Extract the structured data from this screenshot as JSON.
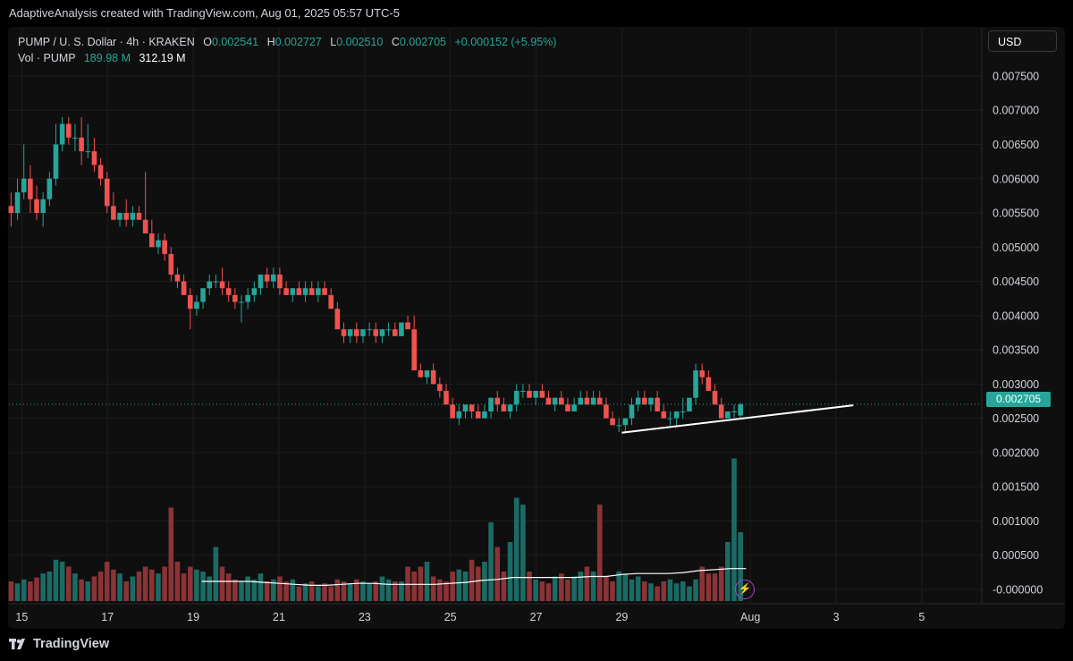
{
  "attribution": "AdaptiveAnalysis created with TradingView.com, Aug 01, 2025 05:57 UTC-5",
  "legend": {
    "symbol": "PUMP / U. S. Dollar · 4h · KRAKEN",
    "o_label": "O",
    "o": "0.002541",
    "h_label": "H",
    "h": "0.002727",
    "l_label": "L",
    "l": "0.002510",
    "c_label": "C",
    "c": "0.002705",
    "change": "+0.000152 (+5.95%)",
    "vol_label": "Vol · PUMP",
    "vol_ma": "189.98 M",
    "vol": "312.19 M"
  },
  "currency": "USD",
  "last_price_label": "0.002705",
  "footer_brand": "TradingView",
  "colors": {
    "up": "#26a69a",
    "down": "#ef5350",
    "up_vol": "#1b6b64",
    "down_vol": "#8b3336",
    "grid": "#1e1e1e",
    "text": "#d1d4dc"
  },
  "chart_data": {
    "type": "candlestick",
    "title": "PUMP / U. S. Dollar · 4h · KRAKEN",
    "price_axis": {
      "ticks": [
        "0.007500",
        "0.007000",
        "0.006500",
        "0.006000",
        "0.005500",
        "0.005000",
        "0.004500",
        "0.004000",
        "0.003500",
        "0.003000",
        "0.002500",
        "0.002000",
        "0.001500",
        "0.001000",
        "0.000500",
        "-0.000000"
      ],
      "tick_values": [
        0.0075,
        0.007,
        0.0065,
        0.006,
        0.0055,
        0.005,
        0.0045,
        0.004,
        0.0035,
        0.003,
        0.0025,
        0.002,
        0.0015,
        0.001,
        0.0005,
        0
      ],
      "range": [
        -0.00017,
        0.0078
      ]
    },
    "time_axis": {
      "ticks": [
        "15",
        "17",
        "19",
        "21",
        "23",
        "25",
        "27",
        "29",
        "Aug",
        "3",
        "5"
      ],
      "tick_days": [
        15,
        17,
        19,
        21,
        23,
        25,
        27,
        29,
        32,
        34,
        36
      ],
      "range_days": [
        14.7,
        37.4
      ]
    },
    "candles_ohlc": [
      [
        0.0056,
        0.0058,
        0.0053,
        0.0055
      ],
      [
        0.0055,
        0.006,
        0.0054,
        0.0058
      ],
      [
        0.0058,
        0.0065,
        0.0057,
        0.006
      ],
      [
        0.006,
        0.0062,
        0.0055,
        0.0057
      ],
      [
        0.0057,
        0.0059,
        0.0054,
        0.0055
      ],
      [
        0.0055,
        0.0058,
        0.0053,
        0.0057
      ],
      [
        0.0057,
        0.0061,
        0.0056,
        0.006
      ],
      [
        0.006,
        0.0068,
        0.0059,
        0.0065
      ],
      [
        0.0065,
        0.0069,
        0.0064,
        0.0068
      ],
      [
        0.0068,
        0.0069,
        0.0065,
        0.0066
      ],
      [
        0.0066,
        0.0068,
        0.0064,
        0.0066
      ],
      [
        0.0066,
        0.0069,
        0.0062,
        0.0064
      ],
      [
        0.0064,
        0.0068,
        0.0063,
        0.0064
      ],
      [
        0.0064,
        0.0066,
        0.0061,
        0.0062
      ],
      [
        0.0062,
        0.0063,
        0.0059,
        0.006
      ],
      [
        0.006,
        0.0061,
        0.0055,
        0.0056
      ],
      [
        0.0056,
        0.0058,
        0.0054,
        0.0054
      ],
      [
        0.0054,
        0.0055,
        0.0053,
        0.0055
      ],
      [
        0.0055,
        0.0057,
        0.0053,
        0.0054
      ],
      [
        0.0054,
        0.0056,
        0.0053,
        0.0055
      ],
      [
        0.0055,
        0.0056,
        0.0054,
        0.0054
      ],
      [
        0.0054,
        0.0061,
        0.0053,
        0.0052
      ],
      [
        0.0052,
        0.0054,
        0.0051,
        0.005
      ],
      [
        0.005,
        0.0052,
        0.0049,
        0.0051
      ],
      [
        0.0051,
        0.0052,
        0.0048,
        0.0049
      ],
      [
        0.0049,
        0.005,
        0.0045,
        0.0046
      ],
      [
        0.0046,
        0.0047,
        0.0044,
        0.0045
      ],
      [
        0.0045,
        0.0046,
        0.0043,
        0.0043
      ],
      [
        0.0043,
        0.0044,
        0.0038,
        0.0041
      ],
      [
        0.0041,
        0.0043,
        0.004,
        0.0042
      ],
      [
        0.0042,
        0.0044,
        0.0041,
        0.0044
      ],
      [
        0.0044,
        0.0046,
        0.0043,
        0.0045
      ],
      [
        0.0045,
        0.0046,
        0.0044,
        0.0045
      ],
      [
        0.0045,
        0.0047,
        0.0043,
        0.0044
      ],
      [
        0.0044,
        0.0045,
        0.0042,
        0.0043
      ],
      [
        0.0043,
        0.0044,
        0.0041,
        0.0042
      ],
      [
        0.0042,
        0.0043,
        0.0039,
        0.0042
      ],
      [
        0.0042,
        0.0044,
        0.0041,
        0.0043
      ],
      [
        0.0043,
        0.0045,
        0.0042,
        0.0044
      ],
      [
        0.0044,
        0.0046,
        0.0043,
        0.0046
      ],
      [
        0.0046,
        0.0047,
        0.0044,
        0.0045
      ],
      [
        0.0045,
        0.0047,
        0.0044,
        0.0046
      ],
      [
        0.0046,
        0.0047,
        0.0043,
        0.0044
      ],
      [
        0.0044,
        0.0045,
        0.0043,
        0.0043
      ],
      [
        0.0043,
        0.0044,
        0.0042,
        0.0044
      ],
      [
        0.0044,
        0.0045,
        0.0043,
        0.0043
      ],
      [
        0.0043,
        0.0045,
        0.0042,
        0.0044
      ],
      [
        0.0044,
        0.0045,
        0.0043,
        0.0043
      ],
      [
        0.0043,
        0.0045,
        0.0042,
        0.0044
      ],
      [
        0.0044,
        0.0045,
        0.0043,
        0.0043
      ],
      [
        0.0043,
        0.0044,
        0.0041,
        0.0041
      ],
      [
        0.0041,
        0.0042,
        0.0038,
        0.0038
      ],
      [
        0.0038,
        0.0039,
        0.0036,
        0.0037
      ],
      [
        0.0037,
        0.0038,
        0.0036,
        0.0038
      ],
      [
        0.0038,
        0.0039,
        0.0036,
        0.0037
      ],
      [
        0.0037,
        0.0038,
        0.0036,
        0.0038
      ],
      [
        0.0038,
        0.0039,
        0.0037,
        0.0038
      ],
      [
        0.0038,
        0.0039,
        0.0036,
        0.0037
      ],
      [
        0.0037,
        0.0038,
        0.0036,
        0.0038
      ],
      [
        0.0038,
        0.0039,
        0.0037,
        0.0038
      ],
      [
        0.0038,
        0.0039,
        0.0037,
        0.0037
      ],
      [
        0.0037,
        0.0039,
        0.0037,
        0.0039
      ],
      [
        0.0039,
        0.004,
        0.0038,
        0.0038
      ],
      [
        0.0038,
        0.004,
        0.0035,
        0.0032
      ],
      [
        0.0032,
        0.0033,
        0.0031,
        0.0031
      ],
      [
        0.0031,
        0.0032,
        0.003,
        0.0032
      ],
      [
        0.0032,
        0.0033,
        0.003,
        0.003
      ],
      [
        0.003,
        0.0031,
        0.0028,
        0.0029
      ],
      [
        0.0029,
        0.003,
        0.0027,
        0.0027
      ],
      [
        0.0027,
        0.0028,
        0.0025,
        0.0025
      ],
      [
        0.0025,
        0.0027,
        0.0024,
        0.0026
      ],
      [
        0.0026,
        0.0027,
        0.0025,
        0.0027
      ],
      [
        0.0027,
        0.0027,
        0.0025,
        0.0026
      ],
      [
        0.0026,
        0.0027,
        0.0025,
        0.0025
      ],
      [
        0.0025,
        0.0027,
        0.0025,
        0.0026
      ],
      [
        0.0026,
        0.0028,
        0.0025,
        0.0028
      ],
      [
        0.0028,
        0.0029,
        0.0026,
        0.0027
      ],
      [
        0.0027,
        0.0028,
        0.0026,
        0.0026
      ],
      [
        0.0026,
        0.0027,
        0.0025,
        0.0027
      ],
      [
        0.0027,
        0.003,
        0.0026,
        0.0029
      ],
      [
        0.0029,
        0.003,
        0.0028,
        0.0029
      ],
      [
        0.0029,
        0.003,
        0.0028,
        0.0028
      ],
      [
        0.0028,
        0.0029,
        0.0027,
        0.0029
      ],
      [
        0.0029,
        0.003,
        0.0028,
        0.0028
      ],
      [
        0.0028,
        0.0029,
        0.0027,
        0.0027
      ],
      [
        0.0027,
        0.0028,
        0.0026,
        0.0028
      ],
      [
        0.0028,
        0.0029,
        0.0027,
        0.0027
      ],
      [
        0.0027,
        0.0028,
        0.0026,
        0.0026
      ],
      [
        0.0026,
        0.0028,
        0.0026,
        0.0027
      ],
      [
        0.0027,
        0.0029,
        0.0027,
        0.0028
      ],
      [
        0.0028,
        0.0029,
        0.0027,
        0.0027
      ],
      [
        0.0027,
        0.0029,
        0.0027,
        0.0028
      ],
      [
        0.0028,
        0.0029,
        0.0027,
        0.0027
      ],
      [
        0.0027,
        0.0028,
        0.0025,
        0.0025
      ],
      [
        0.0025,
        0.0026,
        0.0024,
        0.0024
      ],
      [
        0.0024,
        0.0025,
        0.0023,
        0.0024
      ],
      [
        0.0024,
        0.0025,
        0.0023,
        0.0025
      ],
      [
        0.0025,
        0.0028,
        0.0024,
        0.0027
      ],
      [
        0.0027,
        0.0029,
        0.0026,
        0.0028
      ],
      [
        0.0028,
        0.0029,
        0.0027,
        0.0027
      ],
      [
        0.0027,
        0.0028,
        0.0026,
        0.0028
      ],
      [
        0.0028,
        0.0029,
        0.0026,
        0.0026
      ],
      [
        0.0026,
        0.0027,
        0.0025,
        0.0025
      ],
      [
        0.0025,
        0.0026,
        0.0024,
        0.0025
      ],
      [
        0.0025,
        0.0026,
        0.0024,
        0.0026
      ],
      [
        0.0026,
        0.0028,
        0.0025,
        0.0026
      ],
      [
        0.0026,
        0.0028,
        0.0026,
        0.0028
      ],
      [
        0.0028,
        0.0033,
        0.0027,
        0.0032
      ],
      [
        0.0032,
        0.0033,
        0.003,
        0.0031
      ],
      [
        0.0031,
        0.0032,
        0.0029,
        0.0029
      ],
      [
        0.0029,
        0.003,
        0.0027,
        0.0027
      ],
      [
        0.0027,
        0.0028,
        0.0025,
        0.0025
      ],
      [
        0.0025,
        0.0026,
        0.0025,
        0.0026
      ],
      [
        0.0026,
        0.0027,
        0.0025,
        0.0026
      ],
      [
        0.002541,
        0.002727,
        0.00251,
        0.002705
      ]
    ],
    "volume_scale_ratio": [
      0.2,
      0.18,
      0.22,
      0.2,
      0.24,
      0.28,
      0.3,
      0.42,
      0.4,
      0.35,
      0.28,
      0.22,
      0.2,
      0.25,
      0.3,
      0.4,
      0.32,
      0.28,
      0.2,
      0.25,
      0.3,
      0.35,
      0.32,
      0.28,
      0.35,
      0.95,
      0.4,
      0.28,
      0.35,
      0.32,
      0.3,
      0.25,
      0.55,
      0.35,
      0.28,
      0.22,
      0.2,
      0.25,
      0.22,
      0.28,
      0.2,
      0.22,
      0.25,
      0.2,
      0.22,
      0.15,
      0.18,
      0.2,
      0.15,
      0.18,
      0.15,
      0.22,
      0.2,
      0.18,
      0.22,
      0.2,
      0.18,
      0.2,
      0.25,
      0.22,
      0.2,
      0.2,
      0.35,
      0.3,
      0.35,
      0.4,
      0.25,
      0.22,
      0.2,
      0.3,
      0.32,
      0.3,
      0.42,
      0.35,
      0.4,
      0.8,
      0.55,
      0.3,
      0.6,
      1.05,
      0.98,
      0.3,
      0.22,
      0.2,
      0.18,
      0.25,
      0.28,
      0.22,
      0.25,
      0.3,
      0.35,
      0.3,
      0.98,
      0.25,
      0.2,
      0.3,
      0.28,
      0.22,
      0.25,
      0.2,
      0.18,
      0.15,
      0.2,
      0.22,
      0.18,
      0.2,
      0.15,
      0.22,
      0.35,
      0.28,
      0.28,
      0.35,
      0.6,
      1.45,
      0.7,
      0.45,
      0.35,
      0.48,
      0.3,
      0.65,
      0.6,
      0.55,
      0.48,
      0.4,
      0.35,
      0.28,
      0.55,
      0.4,
      0.48,
      0.45,
      0.4
    ],
    "volume_ma_ratio": [
      0.2,
      0.2,
      0.2,
      0.2,
      0.19,
      0.18,
      0.17,
      0.16,
      0.16,
      0.17,
      0.18,
      0.18,
      0.17,
      0.17,
      0.17,
      0.17,
      0.18,
      0.19,
      0.21,
      0.22,
      0.24,
      0.24,
      0.24,
      0.24,
      0.24,
      0.25,
      0.25,
      0.27,
      0.28,
      0.28,
      0.28,
      0.29,
      0.31,
      0.32,
      0.33,
      0.33
    ],
    "volume_ma_start_day": 19.2,
    "trendline": {
      "from": {
        "day": 29.0,
        "price": 0.00229
      },
      "to": {
        "day": 34.4,
        "price": 0.00269
      }
    },
    "last_price": 0.002705
  }
}
